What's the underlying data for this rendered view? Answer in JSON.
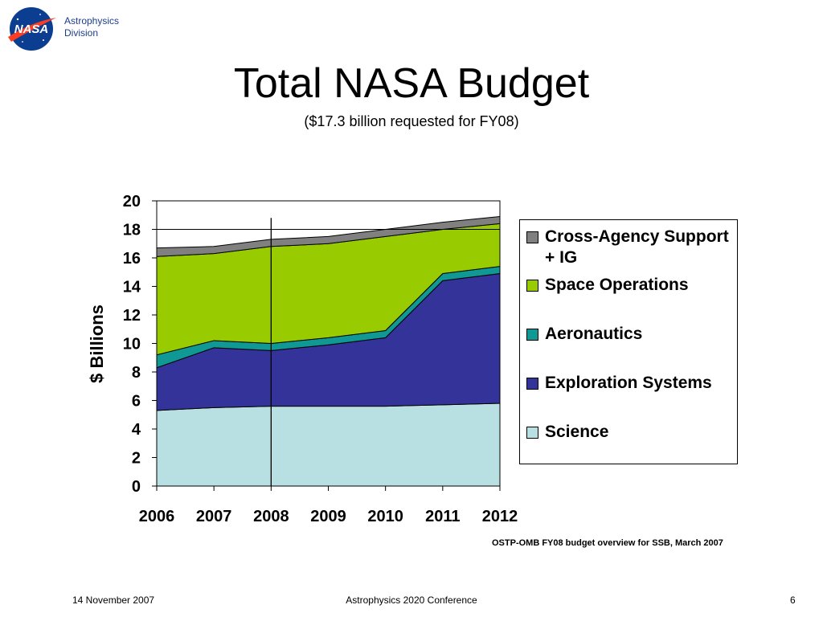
{
  "header": {
    "logo_text": "NASA",
    "division_line1": "Astrophysics",
    "division_line2": "Division"
  },
  "title": "Total NASA Budget",
  "subtitle": "($17.3 billion requested for FY08)",
  "source_note": "OSTP-OMB FY08 budget overview for SSB, March 2007",
  "footer": {
    "date": "14 November 2007",
    "conference": "Astrophysics 2020 Conference",
    "page": "6"
  },
  "colors": {
    "science": "#b8e0e2",
    "exploration": "#333399",
    "aeronautics": "#109894",
    "space_ops": "#99cc00",
    "cross_agency": "#808080",
    "nasa_blue": "#0b3d91",
    "nasa_red": "#fc3d21"
  },
  "chart_data": {
    "type": "area",
    "stacked": true,
    "x": [
      "2006",
      "2007",
      "2008",
      "2009",
      "2010",
      "2011",
      "2012"
    ],
    "ylabel": "$ Billions",
    "ylim": [
      0,
      20
    ],
    "yticks": [
      "0",
      "2",
      "4",
      "6",
      "8",
      "10",
      "12",
      "14",
      "16",
      "18",
      "20"
    ],
    "gridlines": [
      18
    ],
    "marker_line_x": "2008",
    "legend_position": "right",
    "series": [
      {
        "name": "Science",
        "color": "#b8e0e2",
        "values": [
          5.3,
          5.5,
          5.6,
          5.6,
          5.6,
          5.7,
          5.8
        ]
      },
      {
        "name": "Exploration Systems",
        "color": "#333399",
        "values": [
          3.0,
          4.2,
          3.9,
          4.3,
          4.8,
          8.7,
          9.1
        ]
      },
      {
        "name": "Aeronautics",
        "color": "#109894",
        "values": [
          0.9,
          0.5,
          0.5,
          0.5,
          0.5,
          0.5,
          0.5
        ]
      },
      {
        "name": "Space Operations",
        "color": "#99cc00",
        "values": [
          6.9,
          6.1,
          6.8,
          6.6,
          6.6,
          3.1,
          3.0
        ]
      },
      {
        "name": "Cross-Agency Support + IG",
        "color": "#808080",
        "values": [
          0.6,
          0.5,
          0.5,
          0.5,
          0.5,
          0.5,
          0.5
        ]
      }
    ],
    "legend": [
      {
        "name": "Cross-Agency Support + IG",
        "color": "#808080"
      },
      {
        "name": "Space Operations",
        "color": "#99cc00"
      },
      {
        "name": "Aeronautics",
        "color": "#109894"
      },
      {
        "name": "Exploration Systems",
        "color": "#333399"
      },
      {
        "name": "Science",
        "color": "#b8e0e2"
      }
    ]
  }
}
